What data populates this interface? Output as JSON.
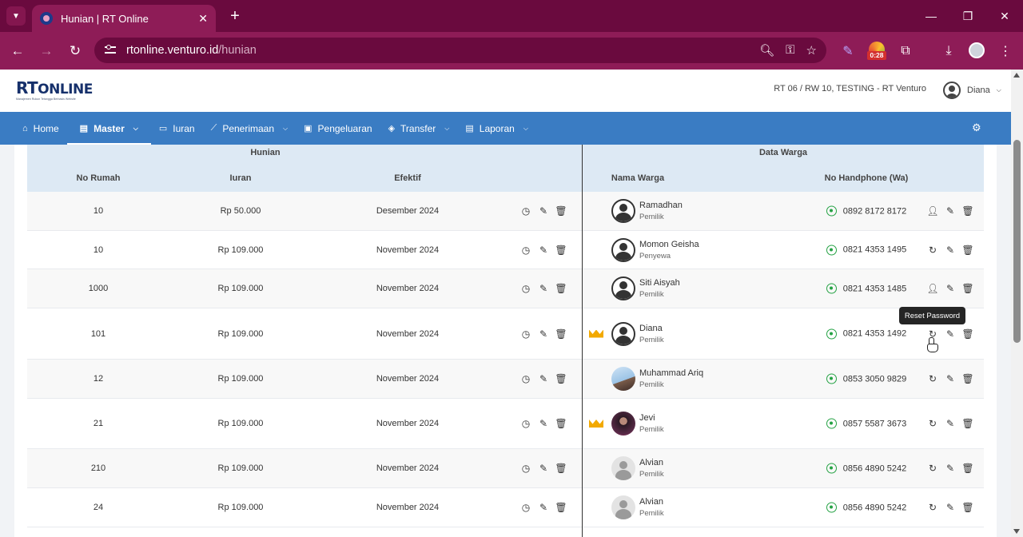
{
  "browser": {
    "tab_title": "Hunian | RT Online",
    "url_host": "rtonline.venturo.id",
    "url_path": "/hunian",
    "timer_badge": "0:28"
  },
  "app": {
    "logo_text": "RT",
    "logo_text2": "ONLINE",
    "logo_tagline": "Manajemen Rukun Tetangga Berbasis Website",
    "rt_info": "RT 06 / RW 10, TESTING - RT Venturo",
    "user_name": "Diana"
  },
  "nav": {
    "home": "Home",
    "master": "Master",
    "iuran": "Iuran",
    "penerimaan": "Penerimaan",
    "pengeluaran": "Pengeluaran",
    "transfer": "Transfer",
    "laporan": "Laporan"
  },
  "table": {
    "group_hunian": "Hunian",
    "group_warga": "Data Warga",
    "col_no_rumah": "No Rumah",
    "col_iuran": "Iuran",
    "col_efektif": "Efektif",
    "col_nama": "Nama Warga",
    "col_phone": "No Handphone (Wa)",
    "rows": [
      {
        "no": "10",
        "iuran": "Rp 50.000",
        "efektif": "Desember 2024",
        "nama": "Ramadhan",
        "status": "Pemilik",
        "phone": "0892 8172 8172",
        "crown": false,
        "avatar": "dark",
        "user_action": "add-user"
      },
      {
        "no": "10",
        "iuran": "Rp 109.000",
        "efektif": "November 2024",
        "nama": "Momon Geisha",
        "status": "Penyewa",
        "phone": "0821 4353 1495",
        "crown": false,
        "avatar": "dark",
        "user_action": "reset"
      },
      {
        "no": "1000",
        "iuran": "Rp 109.000",
        "efektif": "November 2024",
        "nama": "Siti Aisyah",
        "status": "Pemilik",
        "phone": "0821 4353 1485",
        "crown": false,
        "avatar": "dark",
        "user_action": "add-user"
      },
      {
        "no": "101",
        "iuran": "Rp 109.000",
        "efektif": "November 2024",
        "nama": "Diana",
        "status": "Pemilik",
        "phone": "0821 4353 1492",
        "crown": true,
        "avatar": "dark",
        "user_action": "reset"
      },
      {
        "no": "12",
        "iuran": "Rp 109.000",
        "efektif": "November 2024",
        "nama": "Muhammad Ariq",
        "status": "Pemilik",
        "phone": "0853 3050 9829",
        "crown": false,
        "avatar": "photo1",
        "user_action": "reset"
      },
      {
        "no": "21",
        "iuran": "Rp 109.000",
        "efektif": "November 2024",
        "nama": "Jevi",
        "status": "Pemilik",
        "phone": "0857 5587 3673",
        "crown": true,
        "avatar": "photo2",
        "user_action": "reset"
      },
      {
        "no": "210",
        "iuran": "Rp 109.000",
        "efektif": "November 2024",
        "nama": "Alvian",
        "status": "Pemilik",
        "phone": "0856 4890 5242",
        "crown": false,
        "avatar": "grey",
        "user_action": "reset"
      },
      {
        "no": "24",
        "iuran": "Rp 109.000",
        "efektif": "November 2024",
        "nama": "Alvian",
        "status": "Pemilik",
        "phone": "0856 4890 5242",
        "crown": false,
        "avatar": "grey",
        "user_action": "reset"
      }
    ]
  },
  "tooltip": "Reset Password",
  "colors": {
    "chrome_dark": "#6a0a3e",
    "chrome": "#8e1c57",
    "navbar": "#3a7cc3",
    "table_header": "#dde9f4",
    "crown": "#f2a900",
    "whatsapp": "#25a244"
  }
}
